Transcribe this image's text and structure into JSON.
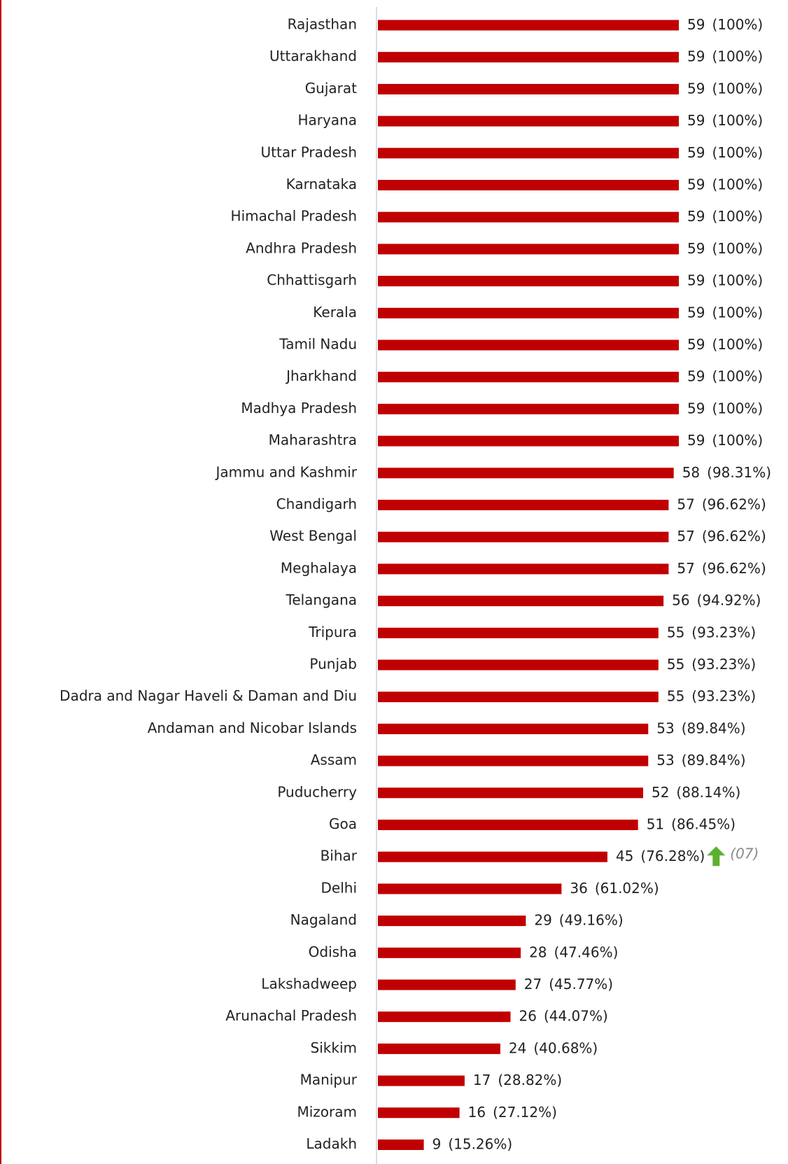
{
  "chart_data": {
    "type": "hbar",
    "categories": [
      "Rajasthan",
      "Uttarakhand",
      "Gujarat",
      "Haryana",
      "Uttar Pradesh",
      "Karnataka",
      "Himachal Pradesh",
      "Andhra Pradesh",
      "Chhattisgarh",
      "Kerala",
      "Tamil Nadu",
      "Jharkhand",
      "Madhya Pradesh",
      "Maharashtra",
      "Jammu and Kashmir",
      "Chandigarh",
      "West Bengal",
      "Meghalaya",
      "Telangana",
      "Tripura",
      "Punjab",
      "Dadra and Nagar Haveli & Daman and Diu",
      "Andaman and Nicobar Islands",
      "Assam",
      "Puducherry",
      "Goa",
      "Bihar",
      "Delhi",
      "Nagaland",
      "Odisha",
      "Lakshadweep",
      "Arunachal Pradesh",
      "Sikkim",
      "Manipur",
      "Mizoram",
      "Ladakh"
    ],
    "values": [
      59,
      59,
      59,
      59,
      59,
      59,
      59,
      59,
      59,
      59,
      59,
      59,
      59,
      59,
      58,
      57,
      57,
      57,
      56,
      55,
      55,
      55,
      53,
      53,
      52,
      51,
      45,
      36,
      29,
      28,
      27,
      26,
      24,
      17,
      16,
      9
    ],
    "percent_labels": [
      "(100%)",
      "(100%)",
      "(100%)",
      "(100%)",
      "(100%)",
      "(100%)",
      "(100%)",
      "(100%)",
      "(100%)",
      "(100%)",
      "(100%)",
      "(100%)",
      "(100%)",
      "(100%)",
      "(98.31%)",
      "(96.62%)",
      "(96.62%)",
      "(96.62%)",
      "(94.92%)",
      "(93.23%)",
      "(93.23%)",
      "(93.23%)",
      "(89.84%)",
      "(89.84%)",
      "(88.14%)",
      "(86.45%)",
      "(76.28%)",
      "(61.02%)",
      "(49.16%)",
      "(47.46%)",
      "(45.77%)",
      "(44.07%)",
      "(40.68%)",
      "(28.82%)",
      "(27.12%)",
      "(15.26%)"
    ],
    "color": "#c00000",
    "xlim": [
      0,
      59
    ],
    "annotation": "(07)"
  }
}
